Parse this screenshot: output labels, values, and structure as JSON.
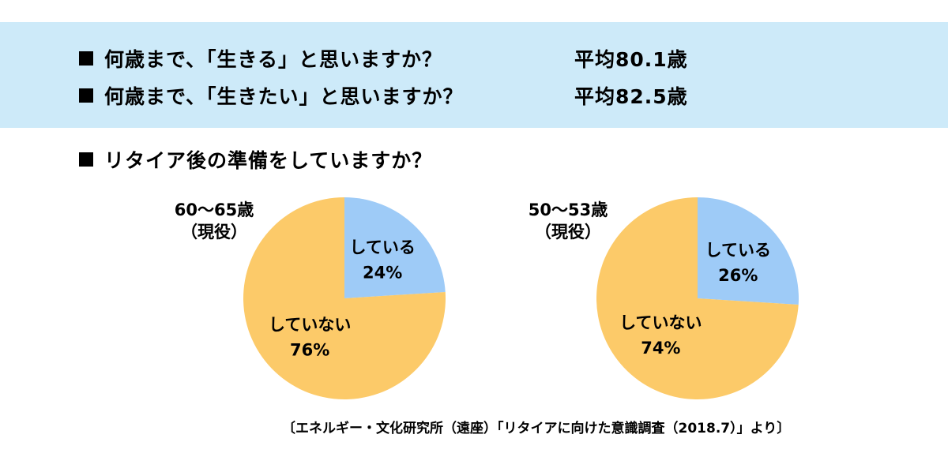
{
  "questions": [
    {
      "text": "何歳まで、「生きる」と思いますか？",
      "average": "平均80.1歳"
    },
    {
      "text": "何歳まで、「生きたい」と思いますか？",
      "average": "平均82.5歳"
    }
  ],
  "chart_title": "リタイア後の準備をしていますか？",
  "colors": {
    "banner": "#cdeaf9",
    "yes": "#9ecbf7",
    "no": "#fcca69"
  },
  "chart_data": [
    {
      "type": "pie",
      "group": "60〜65歳",
      "group_sub": "（現役）",
      "slices": [
        {
          "label": "している",
          "pct_label": "24%",
          "value": 24,
          "color": "#9ecbf7"
        },
        {
          "label": "していない",
          "pct_label": "76%",
          "value": 76,
          "color": "#fcca69"
        }
      ]
    },
    {
      "type": "pie",
      "group": "50〜53歳",
      "group_sub": "（現役）",
      "slices": [
        {
          "label": "している",
          "pct_label": "26%",
          "value": 26,
          "color": "#9ecbf7"
        },
        {
          "label": "していない",
          "pct_label": "74%",
          "value": 74,
          "color": "#fcca69"
        }
      ]
    }
  ],
  "source": "〔エネルギー・文化研究所（遠座）「リタイアに向けた意識調査（2018.7）」より〕"
}
